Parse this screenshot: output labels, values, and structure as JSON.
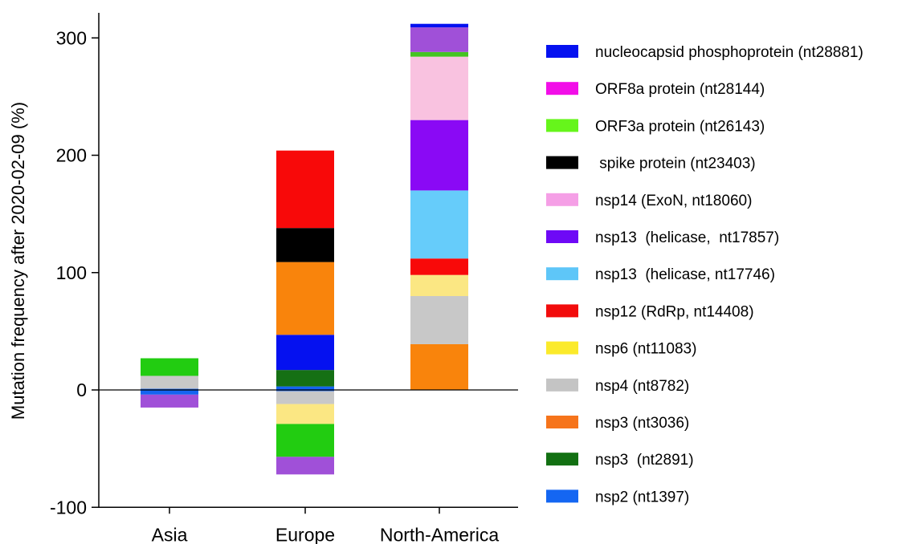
{
  "chart_data": {
    "type": "bar",
    "stacked": true,
    "ylabel": "Mutation frequency after 2020-02-09 (%)",
    "xlabel": "",
    "ylim": [
      -100,
      320
    ],
    "yticks": [
      -100,
      0,
      100,
      200,
      300
    ],
    "categories": [
      "Asia",
      "Europe",
      "North-America"
    ],
    "legend_position": "right",
    "grid": false,
    "segments": [
      {
        "category": "Asia",
        "base": 0,
        "top": 1,
        "color": "#1464f0"
      },
      {
        "category": "Asia",
        "base": 1,
        "top": 12,
        "color": "#c8c8c8"
      },
      {
        "category": "Asia",
        "base": 12,
        "top": 27,
        "color": "#22cc11"
      },
      {
        "category": "Asia",
        "base": 0,
        "top": -4,
        "color": "#1464f0"
      },
      {
        "category": "Asia",
        "base": -4,
        "top": -15,
        "color": "#a050d8"
      },
      {
        "category": "Europe",
        "base": 0,
        "top": 3,
        "color": "#1464f0"
      },
      {
        "category": "Europe",
        "base": 3,
        "top": 17,
        "color": "#157014"
      },
      {
        "category": "Europe",
        "base": 17,
        "top": 47,
        "color": "#0511f0"
      },
      {
        "category": "Europe",
        "base": 47,
        "top": 109,
        "color": "#f9840c"
      },
      {
        "category": "Europe",
        "base": 109,
        "top": 138,
        "color": "#000000"
      },
      {
        "category": "Europe",
        "base": 138,
        "top": 204,
        "color": "#f80909"
      },
      {
        "category": "Europe",
        "base": 0,
        "top": -1,
        "color": "#1464f0"
      },
      {
        "category": "Europe",
        "base": -1,
        "top": -12,
        "color": "#c8c8c8"
      },
      {
        "category": "Europe",
        "base": -12,
        "top": -29,
        "color": "#fbe783"
      },
      {
        "category": "Europe",
        "base": -29,
        "top": -57,
        "color": "#22cc11"
      },
      {
        "category": "Europe",
        "base": -57,
        "top": -72,
        "color": "#a050d8"
      },
      {
        "category": "North-America",
        "base": 0,
        "top": 39,
        "color": "#f9840c"
      },
      {
        "category": "North-America",
        "base": 39,
        "top": 80,
        "color": "#c8c8c8"
      },
      {
        "category": "North-America",
        "base": 80,
        "top": 98,
        "color": "#fbe783"
      },
      {
        "category": "North-America",
        "base": 98,
        "top": 112,
        "color": "#f80909"
      },
      {
        "category": "North-America",
        "base": 112,
        "top": 170,
        "color": "#66ccfa"
      },
      {
        "category": "North-America",
        "base": 170,
        "top": 230,
        "color": "#8a09f5"
      },
      {
        "category": "North-America",
        "base": 230,
        "top": 284,
        "color": "#f9c2e0"
      },
      {
        "category": "North-America",
        "base": 284,
        "top": 288,
        "color": "#45c421"
      },
      {
        "category": "North-America",
        "base": 288,
        "top": 309,
        "color": "#a050d8"
      },
      {
        "category": "North-America",
        "base": 309,
        "top": 312,
        "color": "#0511f0"
      }
    ],
    "legend": [
      {
        "label": "nucleocapsid phosphoprotein (nt28881)",
        "color": "#0511f0"
      },
      {
        "label": "ORF8a protein (nt28144)",
        "color": "#f20ee8"
      },
      {
        "label": "ORF3a protein (nt26143)",
        "color": "#66f51b"
      },
      {
        "label": " spike protein (nt23403)",
        "color": "#000000"
      },
      {
        "label": "nsp14 (ExoN, nt18060)",
        "color": "#f59fe6"
      },
      {
        "label": "nsp13  (helicase,  nt17857)",
        "color": "#6e09f6"
      },
      {
        "label": "nsp13  (helicase, nt17746)",
        "color": "#5ec6f8"
      },
      {
        "label": "nsp12 (RdRp, nt14408)",
        "color": "#f20c0c"
      },
      {
        "label": "nsp6 (nt11083)",
        "color": "#fbea2b"
      },
      {
        "label": "nsp4 (nt8782)",
        "color": "#c4c4c4"
      },
      {
        "label": "nsp3 (nt3036)",
        "color": "#f6741b"
      },
      {
        "label": "nsp3  (nt2891)",
        "color": "#127012"
      },
      {
        "label": "nsp2 (nt1397)",
        "color": "#1466f2"
      }
    ]
  }
}
